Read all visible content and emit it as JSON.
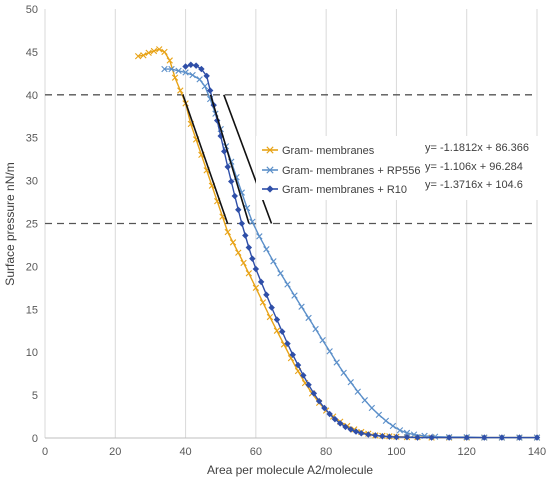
{
  "chart_data": {
    "type": "line",
    "xlabel": "Area per molecule A2/molecule",
    "ylabel": "Surface pressure nN/m",
    "xlim": [
      0,
      140
    ],
    "ylim": [
      0,
      50
    ],
    "xticks": [
      0,
      20,
      40,
      60,
      80,
      100,
      120,
      140
    ],
    "yticks": [
      0,
      5,
      10,
      15,
      20,
      25,
      30,
      35,
      40,
      45,
      50
    ],
    "grid": "vertical",
    "reference_lines_y": [
      40,
      25
    ],
    "legend_position": "center-right",
    "series": [
      {
        "name": "Gram- membranes",
        "color": "#e8a317",
        "marker": "x",
        "x": [
          26.5,
          28,
          29.5,
          31,
          32.5,
          34,
          35.5,
          37,
          38.5,
          40,
          41.5,
          43,
          44.5,
          46,
          47.5,
          49,
          50.5,
          52,
          53.5,
          55,
          56.5,
          58,
          60,
          62,
          64,
          66,
          68,
          70,
          72,
          74,
          76,
          78,
          80,
          82,
          84,
          86,
          88,
          90,
          92,
          94,
          96,
          98,
          100,
          103,
          106,
          110,
          115,
          120,
          125,
          130,
          135,
          140
        ],
        "y": [
          44.5,
          44.6,
          44.9,
          45.1,
          45.3,
          45,
          44,
          42,
          40.5,
          39,
          36.6,
          34.8,
          33,
          31.2,
          29.4,
          27.6,
          25.8,
          24,
          22.8,
          21.6,
          20.4,
          19.2,
          17.5,
          15.8,
          14.1,
          12.5,
          10.9,
          9.3,
          7.8,
          6.4,
          5.2,
          4.1,
          3.2,
          2.5,
          1.9,
          1.4,
          1,
          0.7,
          0.5,
          0.3,
          0.25,
          0.2,
          0.15,
          0.1,
          0.1,
          0.05,
          0.05,
          0.05,
          0.05,
          0.05,
          0.05,
          0.05
        ]
      },
      {
        "name": "Gram- membranes + RP556",
        "color": "#5b8fc9",
        "marker": "x",
        "x": [
          34,
          36,
          38,
          40,
          42,
          44,
          45.5,
          47,
          48.5,
          50,
          51.5,
          53,
          54.5,
          56,
          57.5,
          59,
          61,
          63,
          65,
          67,
          69,
          71,
          73,
          75,
          77,
          79,
          81,
          83,
          85,
          87,
          89,
          91,
          93,
          95,
          97,
          99,
          101,
          103,
          105,
          108,
          111,
          115,
          120,
          125,
          130,
          135,
          140
        ],
        "y": [
          43,
          43,
          42.8,
          42.6,
          42.3,
          41.8,
          41,
          39.5,
          37.8,
          36,
          34,
          32.2,
          30.4,
          28.6,
          26.8,
          25.2,
          23.5,
          22,
          20.6,
          19.2,
          17.9,
          16.6,
          15.3,
          14,
          12.7,
          11.4,
          10.1,
          8.8,
          7.6,
          6.5,
          5.4,
          4.4,
          3.5,
          2.7,
          2,
          1.4,
          0.9,
          0.6,
          0.4,
          0.25,
          0.15,
          0.1,
          0.1,
          0.05,
          0.05,
          0.05,
          0.05
        ]
      },
      {
        "name": "Gram- membranes + R10",
        "color": "#2f4fa8",
        "marker": "diamond",
        "x": [
          40,
          41.5,
          43,
          44.5,
          46,
          47,
          48,
          49,
          50,
          51,
          52,
          53,
          54,
          55,
          56,
          57,
          58,
          59,
          60,
          61.5,
          63,
          64.5,
          66,
          67.5,
          69,
          70.5,
          72,
          73.5,
          75,
          76.5,
          78,
          79.5,
          81,
          82.5,
          84,
          85.5,
          87,
          88.5,
          90,
          92,
          94,
          96,
          98,
          100,
          103,
          106,
          110,
          115,
          120,
          125,
          130,
          135,
          140
        ],
        "y": [
          43.3,
          43.5,
          43.4,
          43,
          42.2,
          40.5,
          38.8,
          37,
          35.2,
          33.4,
          31.6,
          29.9,
          28.2,
          26.6,
          25,
          23.6,
          22.2,
          20.9,
          19.7,
          18.2,
          16.7,
          15.2,
          13.8,
          12.4,
          11,
          9.7,
          8.5,
          7.3,
          6.2,
          5.2,
          4.3,
          3.5,
          2.8,
          2.2,
          1.7,
          1.3,
          1,
          0.75,
          0.55,
          0.4,
          0.3,
          0.2,
          0.15,
          0.1,
          0.1,
          0.05,
          0.05,
          0.05,
          0.05,
          0.05,
          0.05,
          0.05,
          0.05
        ]
      }
    ],
    "trendlines": [
      {
        "series": "Gram- membranes",
        "equation": "y= -1.1812x + 86.366",
        "slope": -1.1812,
        "intercept": 86.366,
        "y_from": 25,
        "y_to": 40
      },
      {
        "series": "Gram- membranes + RP556",
        "equation": "y= -1.106x + 96.284",
        "slope": -1.106,
        "intercept": 96.284,
        "y_from": 25,
        "y_to": 40
      },
      {
        "series": "Gram- membranes + R10",
        "equation": "y= -1.3716x + 104.6",
        "slope": -1.3716,
        "intercept": 104.6,
        "y_from": 25,
        "y_to": 40
      }
    ]
  }
}
